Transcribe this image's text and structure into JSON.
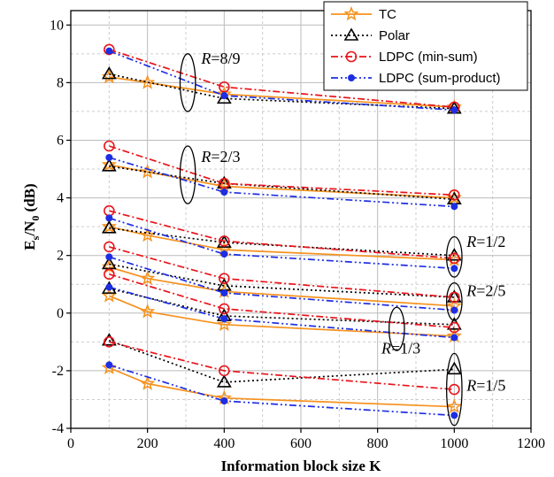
{
  "chart_data": {
    "type": "line",
    "xlabel": "Information block size K",
    "ylabel_main": "E",
    "ylabel_sub1": "s",
    "ylabel_mid": "/N",
    "ylabel_sub2": "0",
    "ylabel_tail": " (dB)",
    "xlim": [
      0,
      1200
    ],
    "ylim": [
      -4,
      10.5
    ],
    "xticks": [
      0,
      200,
      400,
      600,
      800,
      1000,
      1200
    ],
    "yticks": [
      -4,
      -2,
      0,
      2,
      4,
      6,
      8,
      10
    ],
    "grid": true,
    "legend_position": "top-right",
    "series": [
      {
        "name": "TC",
        "color": "#f5921e",
        "marker": "star",
        "dash": "solid",
        "groups": [
          {
            "rate": "8/9",
            "x": [
              100,
              200,
              400,
              1000
            ],
            "y": [
              8.2,
              8.0,
              7.6,
              7.15
            ]
          },
          {
            "rate": "2/3",
            "x": [
              100,
              200,
              400,
              1000
            ],
            "y": [
              5.15,
              4.9,
              4.4,
              4.0
            ]
          },
          {
            "rate": "1/2",
            "x": [
              100,
              200,
              400,
              1000
            ],
            "y": [
              3.0,
              2.7,
              2.2,
              1.85
            ]
          },
          {
            "rate": "2/5",
            "x": [
              100,
              200,
              400,
              1000
            ],
            "y": [
              1.6,
              1.2,
              0.75,
              0.25
            ]
          },
          {
            "rate": "1/3",
            "x": [
              100,
              200,
              400,
              1000
            ],
            "y": [
              0.6,
              0.05,
              -0.4,
              -0.8
            ]
          },
          {
            "rate": "1/5",
            "x": [
              100,
              200,
              400,
              1000
            ],
            "y": [
              -1.9,
              -2.45,
              -2.95,
              -3.25
            ]
          }
        ]
      },
      {
        "name": "Polar",
        "color": "#000000",
        "marker": "triangle",
        "dash": "dotted",
        "groups": [
          {
            "rate": "8/9",
            "x": [
              100,
              400,
              1000
            ],
            "y": [
              8.3,
              7.45,
              7.1
            ]
          },
          {
            "rate": "2/3",
            "x": [
              100,
              400,
              1000
            ],
            "y": [
              5.1,
              4.5,
              3.95
            ]
          },
          {
            "rate": "1/2",
            "x": [
              100,
              400,
              1000
            ],
            "y": [
              2.95,
              2.45,
              2.0
            ]
          },
          {
            "rate": "2/5",
            "x": [
              100,
              400,
              1000
            ],
            "y": [
              1.7,
              0.95,
              0.55
            ]
          },
          {
            "rate": "1/3",
            "x": [
              100,
              400,
              1000
            ],
            "y": [
              0.85,
              -0.1,
              -0.4
            ]
          },
          {
            "rate": "1/5",
            "x": [
              100,
              400,
              1000
            ],
            "y": [
              -0.95,
              -2.4,
              -1.95
            ]
          }
        ]
      },
      {
        "name": "LDPC (min-sum)",
        "color": "#e8141b",
        "marker": "circle-open",
        "dash": "dashdot",
        "groups": [
          {
            "rate": "8/9",
            "x": [
              100,
              400,
              1000
            ],
            "y": [
              9.15,
              7.85,
              7.15
            ]
          },
          {
            "rate": "2/3",
            "x": [
              100,
              400,
              1000
            ],
            "y": [
              5.8,
              4.5,
              4.1
            ]
          },
          {
            "rate": "1/2",
            "x": [
              100,
              400,
              1000
            ],
            "y": [
              3.55,
              2.5,
              1.9
            ]
          },
          {
            "rate": "2/5",
            "x": [
              100,
              400,
              1000
            ],
            "y": [
              2.3,
              1.2,
              0.55
            ]
          },
          {
            "rate": "1/3",
            "x": [
              100,
              400,
              1000
            ],
            "y": [
              1.35,
              0.15,
              -0.5
            ]
          },
          {
            "rate": "1/5",
            "x": [
              100,
              400,
              1000
            ],
            "y": [
              -1.0,
              -2.0,
              -2.65
            ]
          }
        ]
      },
      {
        "name": "LDPC (sum-product)",
        "color": "#1d2ee3",
        "marker": "dot",
        "dash": "dashdotdot",
        "groups": [
          {
            "rate": "8/9",
            "x": [
              100,
              400,
              1000
            ],
            "y": [
              9.1,
              7.55,
              7.05
            ]
          },
          {
            "rate": "2/3",
            "x": [
              100,
              400,
              1000
            ],
            "y": [
              5.4,
              4.2,
              3.7
            ]
          },
          {
            "rate": "1/2",
            "x": [
              100,
              400,
              1000
            ],
            "y": [
              3.3,
              2.05,
              1.55
            ]
          },
          {
            "rate": "2/5",
            "x": [
              100,
              400,
              1000
            ],
            "y": [
              1.95,
              0.7,
              0.1
            ]
          },
          {
            "rate": "1/3",
            "x": [
              100,
              400,
              1000
            ],
            "y": [
              0.9,
              -0.2,
              -0.85
            ]
          },
          {
            "rate": "1/5",
            "x": [
              100,
              400,
              1000
            ],
            "y": [
              -1.8,
              -3.05,
              -3.55
            ]
          }
        ]
      }
    ],
    "annotations": [
      {
        "rate_text": "8/9",
        "x": 340,
        "y": 8.65,
        "ellipse": {
          "cx": 305,
          "cy": 8.0,
          "rx": 20,
          "ry": 1.0
        }
      },
      {
        "rate_text": "2/3",
        "x": 340,
        "y": 5.25,
        "ellipse": {
          "cx": 305,
          "cy": 4.8,
          "rx": 20,
          "ry": 1.0
        }
      },
      {
        "rate_text": "1/2",
        "x": 1032,
        "y": 2.3,
        "ellipse": {
          "cx": 1000,
          "cy": 1.95,
          "rx": 20,
          "ry": 0.7
        }
      },
      {
        "rate_text": "2/5",
        "x": 1032,
        "y": 0.6,
        "ellipse": {
          "cx": 1000,
          "cy": 0.4,
          "rx": 20,
          "ry": 0.65
        }
      },
      {
        "rate_text": "1/3",
        "x": 810,
        "y": -1.4,
        "ellipse": {
          "cx": 850,
          "cy": -0.55,
          "rx": 20,
          "ry": 0.75
        }
      },
      {
        "rate_text": "1/5",
        "x": 1032,
        "y": -2.7,
        "ellipse": {
          "cx": 1000,
          "cy": -2.65,
          "rx": 20,
          "ry": 1.25
        }
      }
    ],
    "annotation_prefix": "R",
    "annotation_eq": "="
  }
}
